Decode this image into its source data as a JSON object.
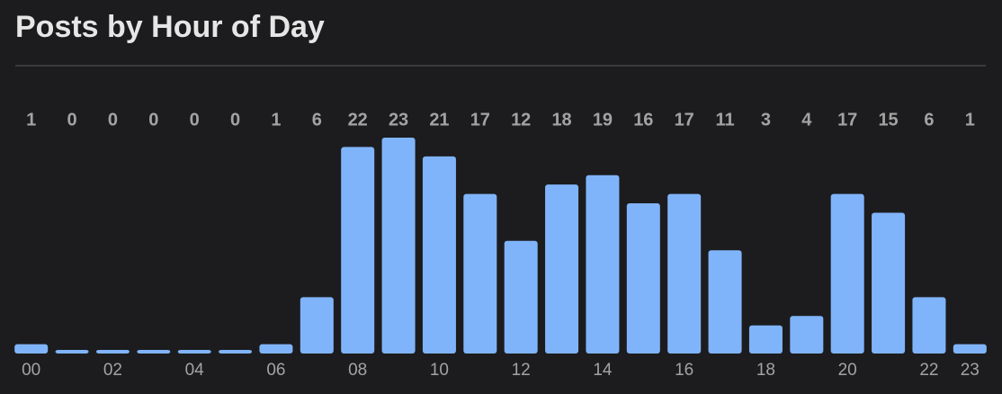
{
  "chart_data": {
    "type": "bar",
    "title": "Posts by Hour of Day",
    "categories": [
      "00",
      null,
      "02",
      null,
      "04",
      null,
      "06",
      null,
      "08",
      null,
      "10",
      null,
      "12",
      null,
      "14",
      null,
      "16",
      null,
      "18",
      null,
      "20",
      null,
      "22",
      "23"
    ],
    "values": [
      1,
      0,
      0,
      0,
      0,
      0,
      1,
      6,
      22,
      23,
      21,
      17,
      12,
      18,
      19,
      16,
      17,
      11,
      3,
      4,
      17,
      15,
      6,
      1
    ],
    "color": "#80b4fa"
  }
}
